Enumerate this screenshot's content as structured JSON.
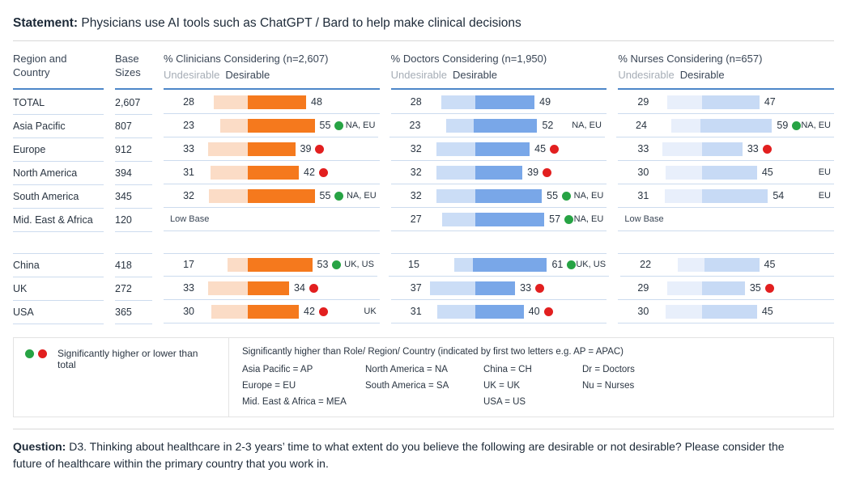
{
  "colors": {
    "accent_underline": "#4D87C9",
    "green_dot": "#27A344",
    "red_dot": "#E21F1F",
    "row_separator": "#CCDBEE"
  },
  "statement": {
    "label": "Statement:",
    "text": "Physicians use AI tools such as ChatGPT / Bard to help make clinical decisions"
  },
  "table": {
    "region_header": "Region and Country",
    "base_header": "Base Sizes",
    "undesirable_label": "Undesirable",
    "desirable_label": "Desirable",
    "low_base_label": "Low Base"
  },
  "chart_data": {
    "type": "bar",
    "orientation": "diverging-horizontal",
    "categories": [
      "TOTAL",
      "Asia Pacific",
      "Europe",
      "North America",
      "South America",
      "Mid. East & Africa",
      "China",
      "UK",
      "USA"
    ],
    "base_sizes": [
      "2,607",
      "807",
      "912",
      "394",
      "345",
      "120",
      "418",
      "272",
      "365"
    ],
    "gap_after_index": 5,
    "charts": [
      {
        "title": "% Clinicians Considering (n=2,607)",
        "colors": {
          "undesirable": "#FBDCC6",
          "desirable": "#F5791D"
        },
        "undesirable": [
          28,
          23,
          33,
          31,
          32,
          null,
          17,
          33,
          30
        ],
        "desirable": [
          48,
          55,
          39,
          42,
          55,
          null,
          53,
          34,
          42
        ],
        "dots": [
          null,
          "green",
          "red",
          "red",
          "green",
          null,
          "green",
          "red",
          "red"
        ],
        "notes": [
          "",
          "NA, EU",
          "",
          "",
          "NA, EU",
          "",
          "UK, US",
          "",
          "UK"
        ],
        "low_base": [
          false,
          false,
          false,
          false,
          false,
          true,
          false,
          false,
          false
        ]
      },
      {
        "title": "% Doctors Considering (n=1,950)",
        "colors": {
          "undesirable": "#CBDDF6",
          "desirable": "#79A7E8"
        },
        "undesirable": [
          28,
          23,
          32,
          32,
          32,
          27,
          15,
          37,
          31
        ],
        "desirable": [
          49,
          52,
          45,
          39,
          55,
          57,
          61,
          33,
          40
        ],
        "dots": [
          null,
          null,
          "red",
          "red",
          "green",
          "green",
          "green",
          "red",
          "red"
        ],
        "notes": [
          "",
          "NA, EU",
          "",
          "",
          "NA, EU",
          "NA, EU",
          "UK, US",
          "",
          ""
        ],
        "low_base": [
          false,
          false,
          false,
          false,
          false,
          false,
          false,
          false,
          false
        ]
      },
      {
        "title": "% Nurses Considering (n=657)",
        "colors": {
          "undesirable": "#E8EFFB",
          "desirable": "#C7DAF5"
        },
        "undesirable": [
          29,
          24,
          33,
          30,
          31,
          null,
          22,
          29,
          30
        ],
        "desirable": [
          47,
          59,
          33,
          45,
          54,
          null,
          45,
          35,
          45
        ],
        "dots": [
          null,
          "green",
          "red",
          null,
          null,
          null,
          null,
          "red",
          null
        ],
        "notes": [
          "",
          "NA, EU",
          "",
          "EU",
          "EU",
          "",
          "",
          "",
          ""
        ],
        "low_base": [
          false,
          false,
          false,
          false,
          false,
          true,
          false,
          false,
          false
        ]
      }
    ]
  },
  "legend": {
    "dots_note": "Significantly higher or lower than total",
    "mapping_title": "Significantly higher than Role/ Region/ Country (indicated by first two letters e.g. AP = APAC)",
    "mapping_columns": [
      [
        "Asia Pacific = AP",
        "Europe = EU",
        "Mid. East & Africa = MEA"
      ],
      [
        "North America  = NA",
        "South America = SA"
      ],
      [
        "China = CH",
        "UK = UK",
        "USA = US"
      ],
      [
        "Dr = Doctors",
        "Nu = Nurses"
      ]
    ]
  },
  "question": {
    "label": "Question:",
    "text": "D3. Thinking about healthcare in 2-3 years’ time to what extent do you believe the following are desirable or not desirable? Please consider the future of healthcare within the primary country that you work in."
  }
}
